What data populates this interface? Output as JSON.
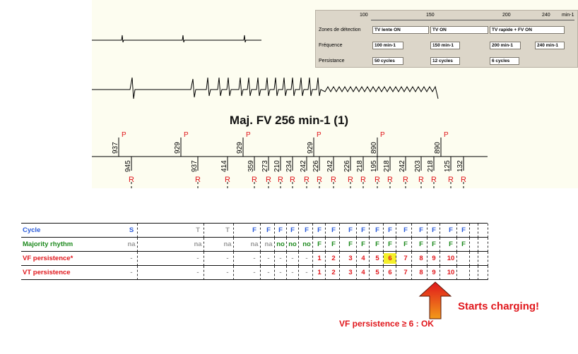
{
  "settings": {
    "scale": [
      "100",
      "150",
      "200",
      "240",
      "min-1"
    ],
    "rows": [
      {
        "label": "Zones de détection",
        "fields": [
          "TV lente ON",
          "TV ON",
          "TV rapide + FV ON"
        ]
      },
      {
        "label": "Fréquence",
        "fields": [
          "100 min-1",
          "150 min-1",
          "200 min-1",
          "240 min-1"
        ]
      },
      {
        "label": "Persistance",
        "fields": [
          "50 cycles",
          "12 cycles",
          "6 cycles"
        ]
      }
    ]
  },
  "title": {
    "text": "Maj. FV 256 min-1 ",
    "highlight": "(1)"
  },
  "p_intervals": [
    "937",
    "929",
    "929",
    "929",
    "890",
    "890"
  ],
  "p_marker": "P",
  "r_intervals": [
    "945",
    "937",
    "414",
    "359",
    "273",
    "210",
    "234",
    "242",
    "226",
    "242",
    "226",
    "218",
    "195",
    "218",
    "242",
    "203",
    "218",
    "125",
    "132"
  ],
  "r_marker": "R",
  "table": {
    "rows": [
      {
        "label": "Cycle",
        "color": "#2a5ad8",
        "values": [
          "S",
          "T",
          "T",
          "F",
          "F",
          "F",
          "F",
          "F",
          "F",
          "F",
          "F",
          "F",
          "F",
          "F",
          "F",
          "F",
          "F",
          "F",
          "F"
        ],
        "colors": [
          "#2a5ad8",
          "#9a9a9a",
          "#9a9a9a",
          "#2a5ad8",
          "#2a5ad8",
          "#2a5ad8",
          "#2a5ad8",
          "#2a5ad8",
          "#2a5ad8",
          "#2a5ad8",
          "#2a5ad8",
          "#2a5ad8",
          "#2a5ad8",
          "#2a5ad8",
          "#2a5ad8",
          "#2a5ad8",
          "#2a5ad8",
          "#2a5ad8",
          "#2a5ad8"
        ]
      },
      {
        "label": "Majority rhythm",
        "color": "#1e8a1e",
        "values": [
          "na",
          "na",
          "na",
          "na",
          "na",
          "no",
          "no",
          "no",
          "F",
          "F",
          "F",
          "F",
          "F",
          "F",
          "F",
          "F",
          "F",
          "F",
          "F"
        ],
        "colors": [
          "#9a9a9a",
          "#9a9a9a",
          "#9a9a9a",
          "#9a9a9a",
          "#9a9a9a",
          "#1e8a1e",
          "#1e8a1e",
          "#1e8a1e",
          "#1e8a1e",
          "#1e8a1e",
          "#1e8a1e",
          "#1e8a1e",
          "#1e8a1e",
          "#1e8a1e",
          "#1e8a1e",
          "#1e8a1e",
          "#1e8a1e",
          "#1e8a1e",
          "#1e8a1e"
        ]
      },
      {
        "label": "VF persistence*",
        "color": "#e0161b",
        "values": [
          "-",
          "-",
          "-",
          "-",
          "-",
          "-",
          "-",
          "-",
          "1",
          "2",
          "3",
          "4",
          "5",
          "6",
          "7",
          "8",
          "9",
          "10",
          ""
        ],
        "colors": [
          "#9a9a9a",
          "#9a9a9a",
          "#9a9a9a",
          "#9a9a9a",
          "#9a9a9a",
          "#9a9a9a",
          "#9a9a9a",
          "#9a9a9a",
          "#e0161b",
          "#e0161b",
          "#e0161b",
          "#e0161b",
          "#e0161b",
          "#e0161b",
          "#e0161b",
          "#e0161b",
          "#e0161b",
          "#e0161b",
          "#e0161b"
        ]
      },
      {
        "label": "VT persistence",
        "color": "#e0161b",
        "values": [
          "-",
          "-",
          "-",
          "-",
          "-",
          "-",
          "-",
          "-",
          "1",
          "2",
          "3",
          "4",
          "5",
          "6",
          "7",
          "8",
          "9",
          "10",
          ""
        ],
        "colors": [
          "#9a9a9a",
          "#9a9a9a",
          "#9a9a9a",
          "#9a9a9a",
          "#9a9a9a",
          "#9a9a9a",
          "#9a9a9a",
          "#9a9a9a",
          "#e0161b",
          "#e0161b",
          "#e0161b",
          "#e0161b",
          "#e0161b",
          "#e0161b",
          "#e0161b",
          "#e0161b",
          "#e0161b",
          "#e0161b",
          "#e0161b"
        ]
      }
    ]
  },
  "annotations": {
    "charge": "Starts charging!",
    "vf_threshold": "VF persistence ≥ 6 : OK"
  },
  "colors": {
    "marker": "#e0161b",
    "highlight": "#f5f02a",
    "strip_bg": "#fdfdf0"
  }
}
